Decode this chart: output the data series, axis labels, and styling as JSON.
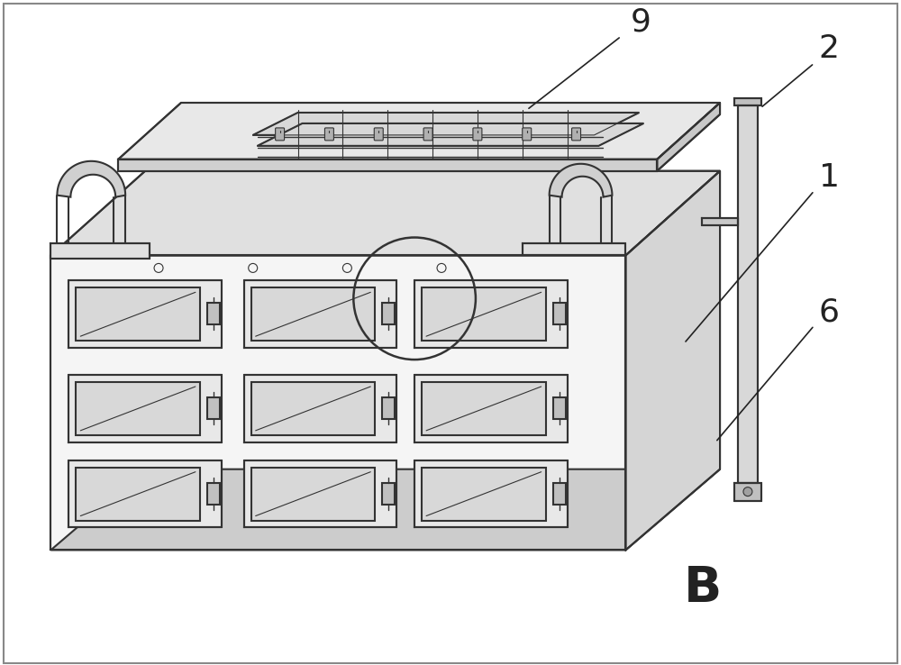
{
  "bg_color": "#ffffff",
  "line_color": "#333333",
  "label_fontsize": 26,
  "B_fontsize": 40,
  "figsize": [
    10.0,
    7.38
  ],
  "dpi": 100
}
